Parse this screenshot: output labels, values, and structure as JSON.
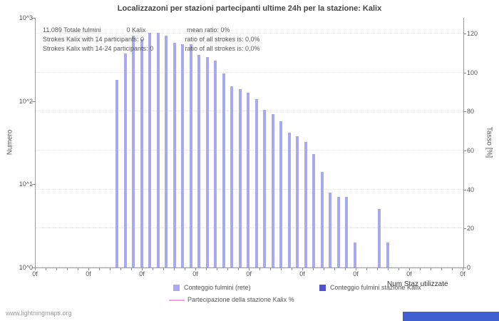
{
  "page": {
    "title": "Localizzazoni per stazioni partecipanti ultime 24h per la stazione: Kalix",
    "watermark": "www.lightningmaps.org",
    "footer_bar_color": "#4060d0"
  },
  "annotations": {
    "line1": {
      "a": "11.089 Totale fulmini",
      "b": "0 Kalix",
      "c": "mean ratio: 0%"
    },
    "line2": {
      "a": "Strokes Kalix with 14 participants: 0",
      "b": "ratio of all strokes is: 0,0%"
    },
    "line3": {
      "a": "Strokes Kalix with 14-24 participants: 0",
      "b": "ratio of all strokes is: 0,0%"
    }
  },
  "axes": {
    "left_title": "Numero",
    "right_title": "Tasso [%]",
    "x_title": "Num Staz utilizzate",
    "left_ticks": [
      "10^0",
      "10^1",
      "10^2",
      "10^3"
    ],
    "right_ticks": [
      0,
      20,
      40,
      60,
      80,
      100,
      120
    ],
    "x_tick_label": "0f"
  },
  "legend": [
    {
      "label": "Conteggio fulmini (rete)",
      "color": "#a9a9ef",
      "type": "square"
    },
    {
      "label": "Conteggio fulmini stazione Kalix",
      "color": "#5353cf",
      "type": "square"
    },
    {
      "label": "Partecipazione della stazione Kalix %",
      "color": "#efa0ef",
      "type": "line"
    }
  ],
  "chart_data": {
    "type": "bar",
    "title": "Localizzazoni per stazioni partecipanti ultime 24h per la stazione: Kalix",
    "xlabel": "Num Staz utilizzate",
    "ylabel_left": "Numero",
    "ylabel_right": "Tasso [%]",
    "y_scale": "log10",
    "ylim_left": [
      1,
      1000
    ],
    "left_tick_values": [
      1,
      10,
      100,
      1000
    ],
    "ylim_right": [
      0,
      120
    ],
    "right_tick_values": [
      0,
      20,
      40,
      60,
      80,
      100,
      120
    ],
    "grid": "dotted-horizontal",
    "legend_position": "bottom",
    "total_strokes": 11089,
    "kalix_strokes": 0,
    "mean_ratio_percent": 0,
    "series": [
      {
        "name": "Conteggio fulmini (rete)",
        "color": "#a9a9ef",
        "values": [
          180,
          370,
          610,
          550,
          660,
          660,
          610,
          500,
          480,
          480,
          355,
          335,
          305,
          215,
          150,
          140,
          125,
          105,
          78,
          70,
          57,
          42,
          38,
          32,
          23,
          14,
          8,
          7,
          7,
          2,
          null,
          null,
          5,
          2
        ]
      },
      {
        "name": "Conteggio fulmini stazione Kalix",
        "color": "#5353cf",
        "total": 0,
        "values": []
      },
      {
        "name": "Partecipazione della stazione Kalix %",
        "color": "#efa0ef",
        "type": "line",
        "mean_percent": 0
      }
    ]
  }
}
